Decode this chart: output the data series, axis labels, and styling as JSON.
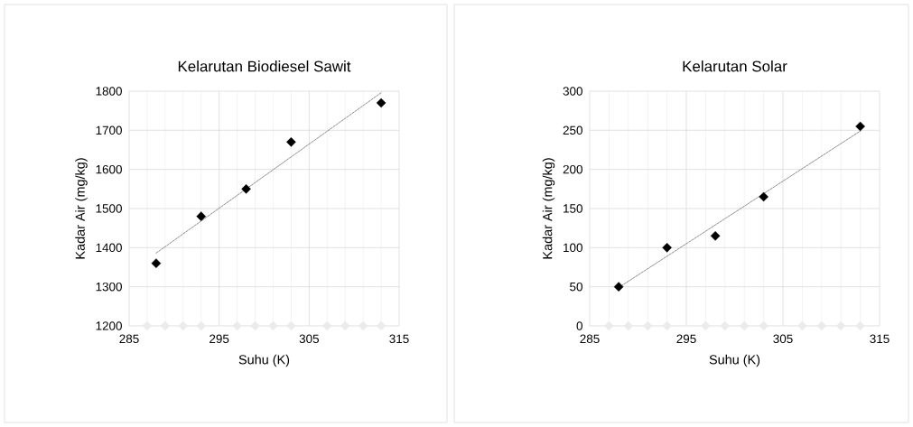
{
  "chart_data": [
    {
      "type": "scatter",
      "title": "Kelarutan Biodiesel Sawit",
      "xlabel": "Suhu (K)",
      "ylabel": "Kadar Air (mg/kg)",
      "xlim": [
        285,
        315
      ],
      "xticks": [
        285,
        295,
        305,
        315
      ],
      "ylim": [
        1200,
        1800
      ],
      "yticks": [
        1200,
        1300,
        1400,
        1500,
        1600,
        1700,
        1800
      ],
      "grid": true,
      "marker": "diamond",
      "series": [
        {
          "color": "#000000",
          "x": [
            288,
            293,
            298,
            303,
            313
          ],
          "values": [
            1360,
            1480,
            1550,
            1670,
            1770
          ]
        },
        {
          "type": "line",
          "color": "#7f7f7f",
          "line_style": "dashed",
          "marker": "none",
          "x": [
            288,
            313
          ],
          "values": [
            1386,
            1796
          ]
        },
        {
          "color": "#ebebeb",
          "x": [
            287,
            289,
            291,
            293,
            297,
            299,
            301,
            303,
            307,
            309,
            311,
            313
          ],
          "values": [
            1200,
            1200,
            1200,
            1200,
            1200,
            1200,
            1200,
            1200,
            1200,
            1200,
            1200,
            1200
          ]
        }
      ]
    },
    {
      "type": "scatter",
      "title": "Kelarutan Solar",
      "xlabel": "Suhu (K)",
      "ylabel": "Kadar Air (mg/kg)",
      "xlim": [
        285,
        315
      ],
      "xticks": [
        285,
        295,
        305,
        315
      ],
      "ylim": [
        0,
        300
      ],
      "yticks": [
        0,
        50,
        100,
        150,
        200,
        250,
        300
      ],
      "grid": true,
      "marker": "diamond",
      "series": [
        {
          "color": "#000000",
          "x": [
            288,
            293,
            298,
            303,
            313
          ],
          "values": [
            50,
            100,
            115,
            165,
            255
          ]
        },
        {
          "type": "line",
          "color": "#7f7f7f",
          "line_style": "dashed",
          "marker": "none",
          "x": [
            288,
            313
          ],
          "values": [
            49,
            249
          ]
        },
        {
          "color": "#ebebeb",
          "x": [
            287,
            289,
            291,
            293,
            297,
            299,
            301,
            303,
            307,
            309,
            311,
            313
          ],
          "values": [
            0,
            0,
            0,
            0,
            0,
            0,
            0,
            0,
            0,
            0,
            0,
            0
          ]
        }
      ]
    }
  ]
}
